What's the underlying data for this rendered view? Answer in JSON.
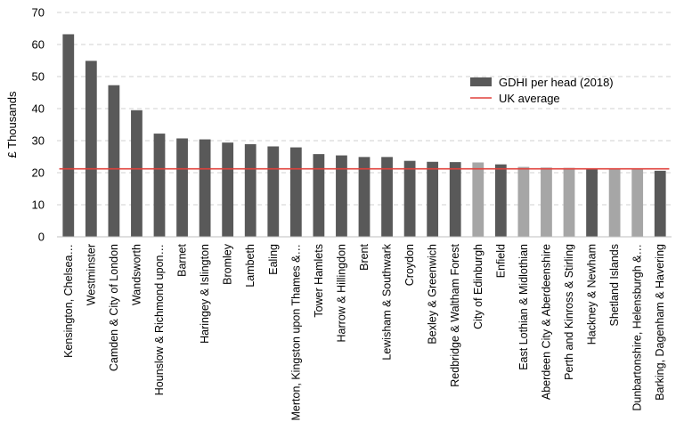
{
  "chart_data": {
    "type": "bar",
    "ylabel": "£ Thousands",
    "xlabel": "",
    "title": "",
    "ylim": [
      0,
      70
    ],
    "yticks": [
      0,
      10,
      20,
      30,
      40,
      50,
      60,
      70
    ],
    "grid": "horizontal dashed",
    "legend_position": "right",
    "categories": [
      "Kensington, Chelsea…",
      "Westminster",
      "Camden & City of London",
      "Wandsworth",
      "Hounslow & Richmond upon…",
      "Barnet",
      "Haringey & Islington",
      "Bromley",
      "Lambeth",
      "Ealing",
      "Merton, Kingston upon Thames &…",
      "Tower Hamlets",
      "Harrow & Hillingdon",
      "Brent",
      "Lewisham & Southwark",
      "Croydon",
      "Bexley & Greenwich",
      "Redbridge & Waltham Forest",
      "City of Edinburgh",
      "Enfield",
      "East Lothian & Midlothian",
      "Aberdeen City & Aberdeenshire",
      "Perth and Kinross & Stirling",
      "Hackney & Newham",
      "Shetland Islands",
      "Dunbartonshire, Helensburgh &…",
      "Barking, Dagenham & Havering"
    ],
    "series": [
      {
        "name": "GDHI per head (2018)",
        "values": [
          63.2,
          54.9,
          47.3,
          39.5,
          32.2,
          30.7,
          30.4,
          29.4,
          28.9,
          28.2,
          27.9,
          25.8,
          25.4,
          24.9,
          24.9,
          23.7,
          23.4,
          23.3,
          23.2,
          22.6,
          21.8,
          21.6,
          21.5,
          21.1,
          21.1,
          21.0,
          20.6
        ],
        "highlight": [
          false,
          false,
          false,
          false,
          false,
          false,
          false,
          false,
          false,
          false,
          false,
          false,
          false,
          false,
          false,
          false,
          false,
          false,
          true,
          false,
          true,
          true,
          true,
          false,
          true,
          true,
          false
        ]
      }
    ],
    "reference_line": {
      "name": "UK average",
      "value": 21.2
    },
    "colors": {
      "bar": "#595959",
      "bar_highlight": "#a6a6a6",
      "average_line": "#e0413c",
      "grid": "#d0d0d0"
    }
  }
}
